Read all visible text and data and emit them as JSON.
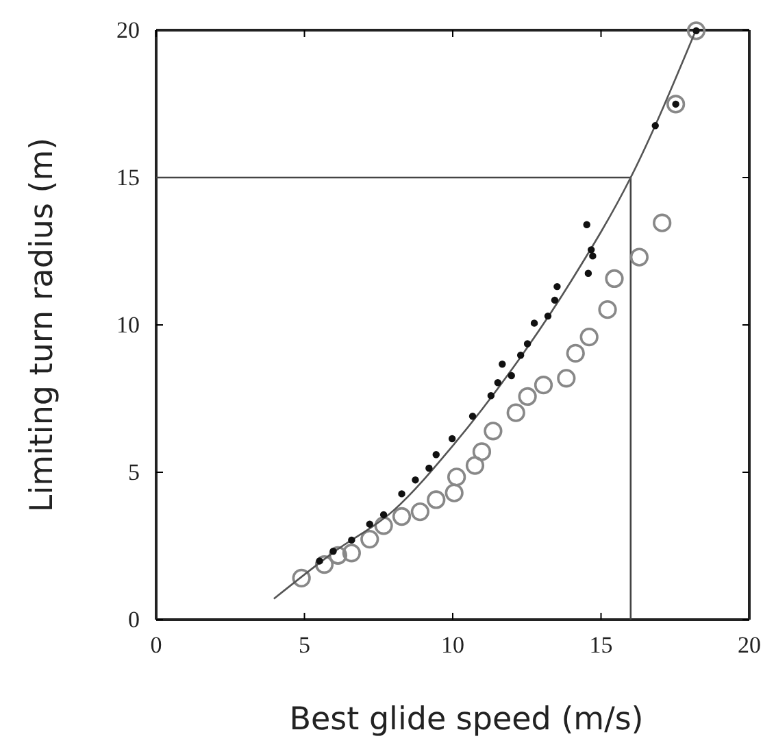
{
  "chart_data": {
    "type": "scatter",
    "xlabel": "Best glide speed (m/s)",
    "ylabel": "Limiting turn radius (m)",
    "xlim": [
      0,
      20
    ],
    "ylim": [
      0,
      20
    ],
    "xticks": [
      0,
      5,
      10,
      15,
      20
    ],
    "yticks": [
      0,
      5,
      10,
      15,
      20
    ],
    "grid": false,
    "marker": "circle",
    "ref_lines": [
      {
        "axis": "y",
        "value": 15,
        "color": "#444444"
      },
      {
        "axis": "x",
        "value": 16,
        "color": "#444444"
      }
    ],
    "series": [
      {
        "color": "#111111",
        "x": [
          5.51,
          5.97,
          6.59,
          7.2,
          7.67,
          8.28,
          8.74,
          9.2,
          9.44,
          9.98,
          10.67,
          11.29,
          11.52,
          11.67,
          11.98,
          12.29,
          12.52,
          12.75,
          13.21,
          13.44,
          13.52,
          14.52,
          14.67,
          14.72,
          14.57,
          16.83,
          17.52,
          18.21
        ],
        "values": [
          1.99,
          2.32,
          2.7,
          3.24,
          3.56,
          4.27,
          4.74,
          5.14,
          5.6,
          6.14,
          6.9,
          7.6,
          8.04,
          8.67,
          8.28,
          8.97,
          9.36,
          10.06,
          10.3,
          10.84,
          11.3,
          13.4,
          12.55,
          12.34,
          11.75,
          16.76,
          17.49,
          19.98
        ]
      },
      {
        "color": "#888888",
        "x": [
          4.9,
          5.67,
          6.13,
          6.59,
          7.2,
          7.67,
          8.28,
          8.9,
          9.44,
          10.05,
          10.13,
          10.75,
          10.98,
          11.36,
          12.13,
          12.52,
          13.06,
          13.83,
          14.14,
          14.6,
          15.22,
          15.45,
          16.29,
          17.06,
          17.52,
          18.21
        ],
        "values": [
          1.41,
          1.87,
          2.18,
          2.26,
          2.73,
          3.19,
          3.5,
          3.66,
          4.07,
          4.3,
          4.84,
          5.23,
          5.7,
          6.4,
          7.02,
          7.57,
          7.96,
          8.19,
          9.04,
          9.59,
          10.52,
          11.57,
          12.3,
          13.46,
          17.49,
          19.98
        ]
      },
      {
        "type": "line",
        "color": "#555555",
        "marker": "none",
        "x": [
          3.97,
          6,
          8,
          10,
          12,
          14,
          16,
          18.2
        ],
        "values": [
          0.71,
          2.3,
          3.7,
          5.9,
          8.5,
          11.5,
          15,
          20
        ]
      }
    ]
  }
}
